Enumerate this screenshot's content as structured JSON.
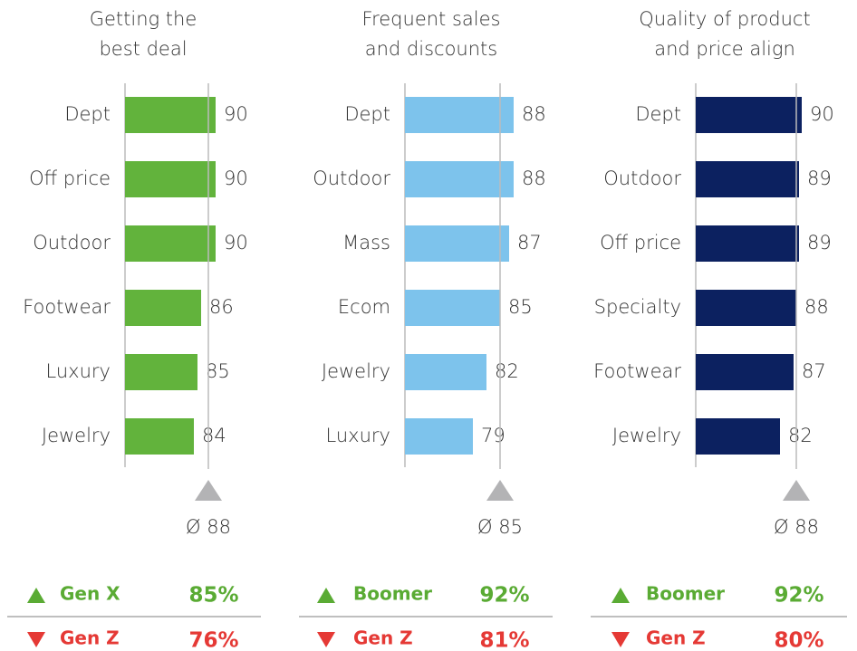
{
  "chart_data": [
    {
      "type": "bar",
      "orientation": "horizontal",
      "title": [
        "Getting the",
        "best deal"
      ],
      "categories": [
        "Dept",
        "Off price",
        "Outdoor",
        "Footwear",
        "Luxury",
        "Jewelry"
      ],
      "values": [
        90,
        90,
        90,
        86,
        85,
        84
      ],
      "color": "#62b33c",
      "xlim": [
        65,
        90
      ],
      "average": 88,
      "average_label": "Ø 88",
      "highest": {
        "group": "Gen X",
        "value": 85,
        "value_label": "85%"
      },
      "lowest": {
        "group": "Gen Z",
        "value": 76,
        "value_label": "76%"
      }
    },
    {
      "type": "bar",
      "orientation": "horizontal",
      "title": [
        "Frequent sales",
        "and discounts"
      ],
      "categories": [
        "Dept",
        "Outdoor",
        "Mass",
        "Ecom",
        "Jewelry",
        "Luxury"
      ],
      "values": [
        88,
        88,
        87,
        85,
        82,
        79
      ],
      "color": "#7dc3ec",
      "xlim": [
        64,
        88
      ],
      "average": 85,
      "average_label": "Ø 85",
      "highest": {
        "group": "Boomer",
        "value": 92,
        "value_label": "92%"
      },
      "lowest": {
        "group": "Gen Z",
        "value": 81,
        "value_label": "81%"
      }
    },
    {
      "type": "bar",
      "orientation": "horizontal",
      "title": [
        "Quality of product",
        "and price align"
      ],
      "categories": [
        "Dept",
        "Outdoor",
        "Off price",
        "Specialty",
        "Footwear",
        "Jewelry"
      ],
      "values": [
        90,
        89,
        89,
        88,
        87,
        82
      ],
      "color": "#0c2160",
      "xlim": [
        51,
        90
      ],
      "average": 88,
      "average_label": "Ø 88",
      "highest": {
        "group": "Boomer",
        "value": 92,
        "value_label": "92%"
      },
      "lowest": {
        "group": "Gen Z",
        "value": 80,
        "value_label": "80%"
      }
    }
  ]
}
